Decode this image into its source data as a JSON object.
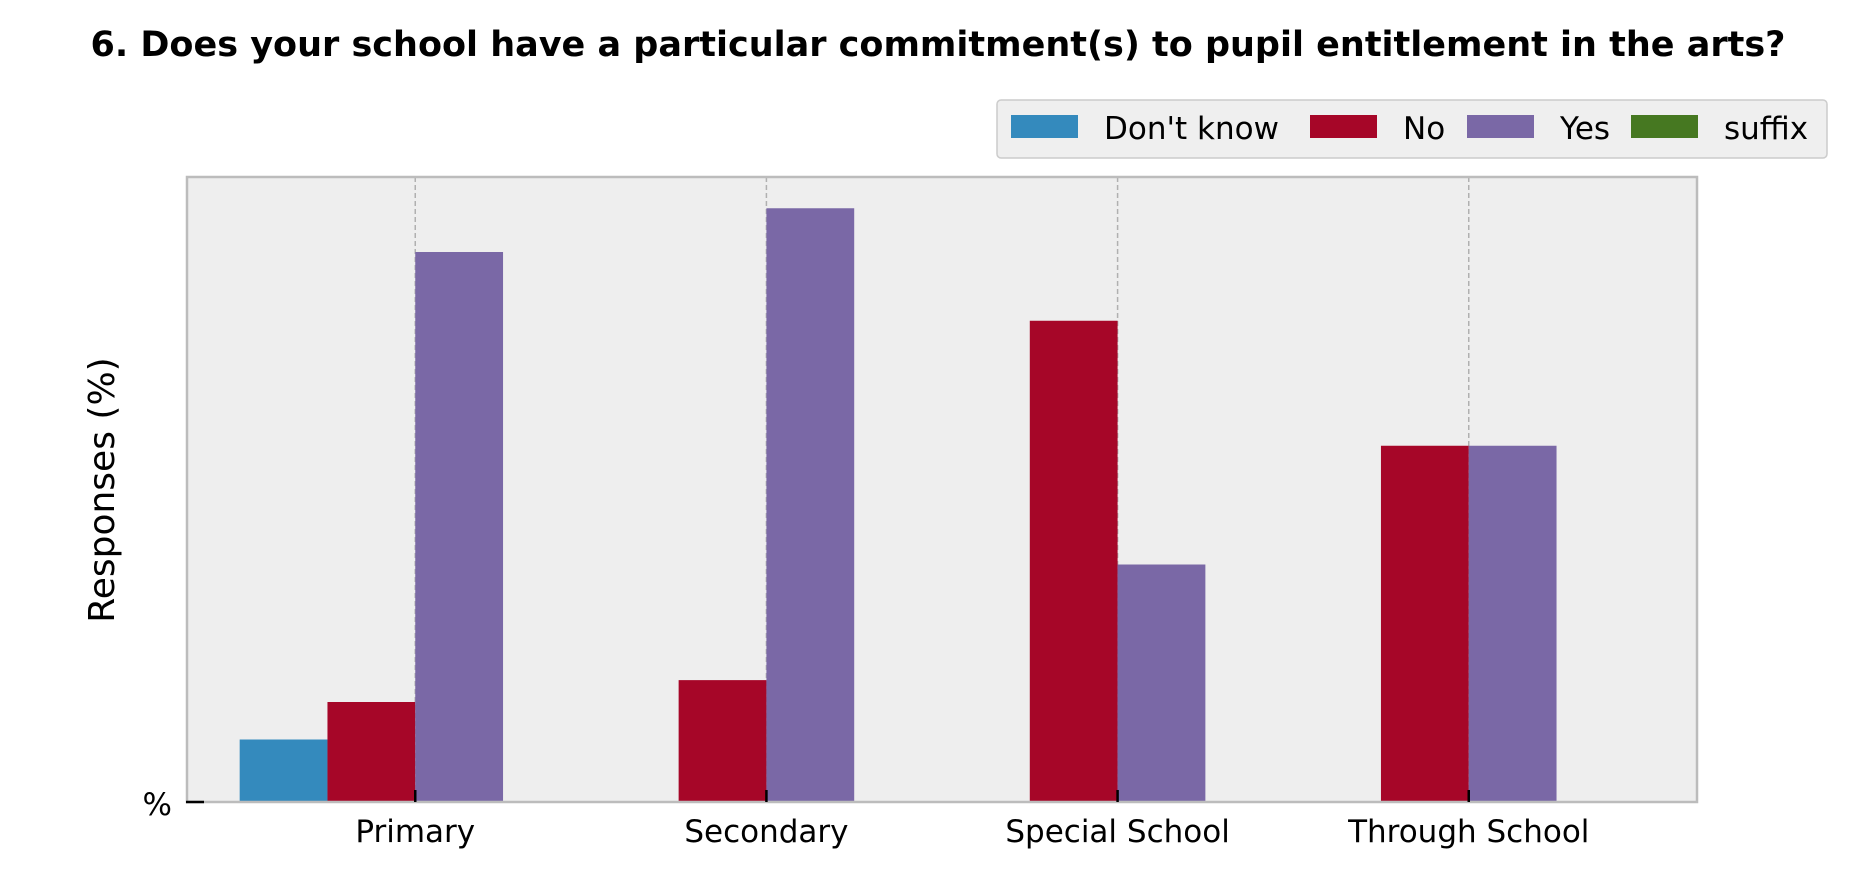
{
  "chart_data": {
    "type": "bar",
    "title": "6. Does your school have a particular commitment(s) to pupil entitlement in the arts?",
    "ylabel": "Responses (%)",
    "ytick_label": "%",
    "categories": [
      "Primary",
      "Secondary",
      "Special School",
      "Through School"
    ],
    "series": [
      {
        "name": "Don't know",
        "color": "#348ABD",
        "values": [
          10,
          0,
          0,
          0
        ]
      },
      {
        "name": "No",
        "color": "#A60628",
        "values": [
          16,
          19.5,
          77,
          57
        ]
      },
      {
        "name": "Yes",
        "color": "#7A68A6",
        "values": [
          88,
          95,
          38,
          57
        ]
      },
      {
        "name": "suffix",
        "color": "#467821",
        "values": [
          0,
          0,
          0,
          0
        ]
      }
    ],
    "ylim": [
      0,
      100
    ],
    "grid": true,
    "legend_position": "top-right"
  }
}
